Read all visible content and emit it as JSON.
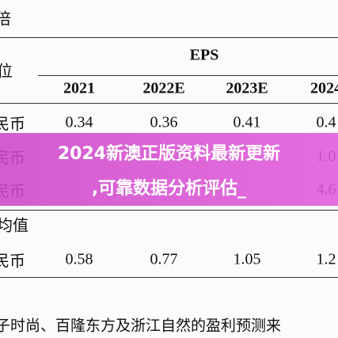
{
  "header": {
    "title": "倍",
    "unit_label": "位",
    "group": "EPS",
    "columns": [
      "2021",
      "2022E",
      "2023E",
      "2024"
    ]
  },
  "table": {
    "rows": [
      [
        "民币",
        "0.34",
        "0.36",
        "0.41",
        "0.4"
      ],
      [
        "民币",
        null,
        null,
        null,
        "1.0"
      ],
      [
        "民币",
        null,
        null,
        null,
        "4.6"
      ]
    ],
    "section": "均值",
    "section_rows": [
      [
        "民币",
        "0.58",
        "0.77",
        "1.05",
        "1.2"
      ]
    ]
  },
  "footnote": "子时尚、百隆东方及浙江自然的盈利预测来",
  "banner": {
    "lines": [
      "2024新澳正版资料最新更新",
      ",可靠数据分析评估_"
    ]
  }
}
